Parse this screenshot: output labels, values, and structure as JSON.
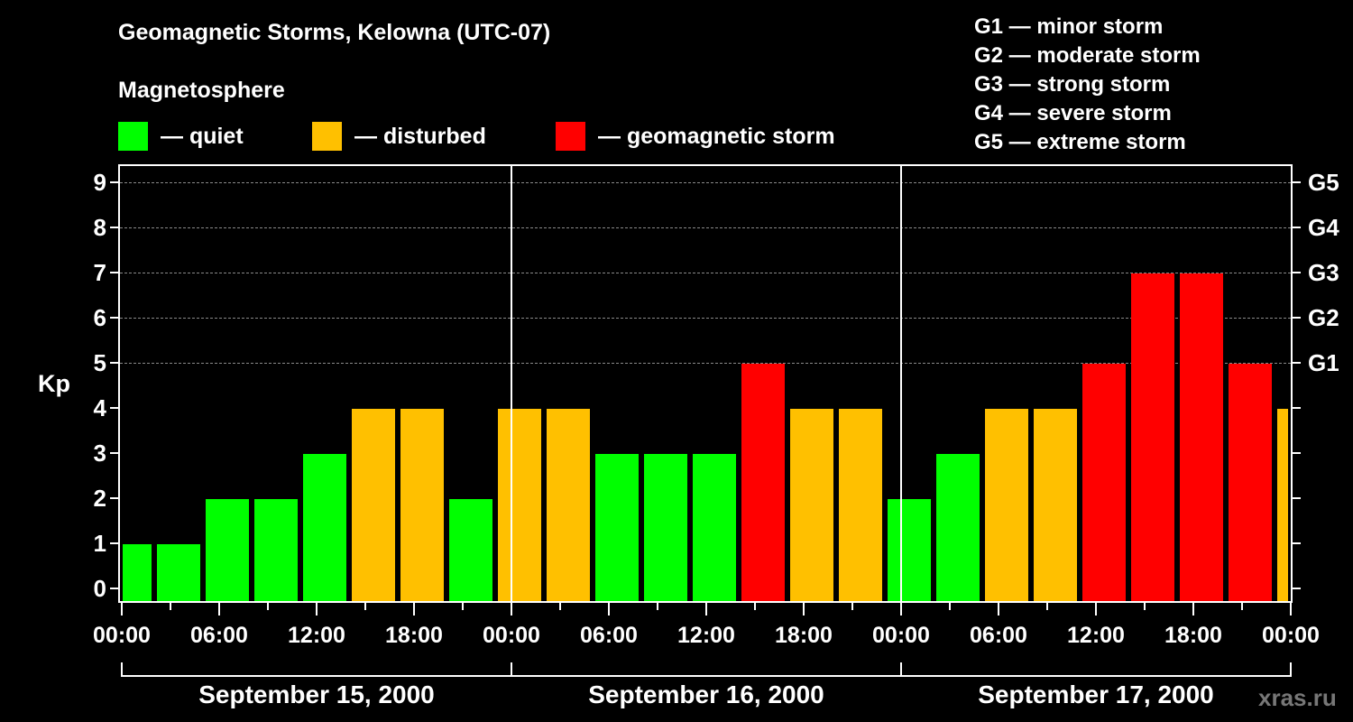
{
  "title": "Geomagnetic Storms, Kelowna (UTC-07)",
  "subtitle": "Magnetosphere",
  "legend": [
    {
      "label": "— quiet",
      "color": "#00ff00"
    },
    {
      "label": "— disturbed",
      "color": "#ffc000"
    },
    {
      "label": "— geomagnetic storm",
      "color": "#ff0000"
    }
  ],
  "g_legend": [
    "G1 — minor storm",
    "G2 — moderate storm",
    "G3 — strong storm",
    "G4 — severe storm",
    "G5 — extreme storm"
  ],
  "y_axis_label": "Kp",
  "y_ticks": [
    "0",
    "1",
    "2",
    "3",
    "4",
    "5",
    "6",
    "7",
    "8",
    "9"
  ],
  "g_ticks": [
    {
      "label": "G1",
      "kp": 5
    },
    {
      "label": "G2",
      "kp": 6
    },
    {
      "label": "G3",
      "kp": 7
    },
    {
      "label": "G4",
      "kp": 8
    },
    {
      "label": "G5",
      "kp": 9
    }
  ],
  "x_ticks": [
    "00:00",
    "06:00",
    "12:00",
    "18:00",
    "00:00",
    "06:00",
    "12:00",
    "18:00",
    "00:00",
    "06:00",
    "12:00",
    "18:00",
    "00:00"
  ],
  "dates": [
    "September 15, 2000",
    "September 16, 2000",
    "September 17, 2000"
  ],
  "watermark": "xras.ru",
  "chart_data": {
    "type": "bar",
    "title": "Geomagnetic Storms, Kelowna (UTC-07)",
    "subtitle": "Magnetosphere",
    "xlabel": "",
    "ylabel": "Kp",
    "ylim": [
      0,
      9
    ],
    "bin_hours": 3,
    "bin_start_offset_hours": -1,
    "categories": [
      "Sep 14 23:00",
      "Sep 15 02:00",
      "Sep 15 05:00",
      "Sep 15 08:00",
      "Sep 15 11:00",
      "Sep 15 14:00",
      "Sep 15 17:00",
      "Sep 15 20:00",
      "Sep 15 23:00",
      "Sep 16 02:00",
      "Sep 16 05:00",
      "Sep 16 08:00",
      "Sep 16 11:00",
      "Sep 16 14:00",
      "Sep 16 17:00",
      "Sep 16 20:00",
      "Sep 16 23:00",
      "Sep 17 02:00",
      "Sep 17 05:00",
      "Sep 17 08:00",
      "Sep 17 11:00",
      "Sep 17 14:00",
      "Sep 17 17:00",
      "Sep 17 20:00",
      "Sep 17 23:00"
    ],
    "values": [
      1,
      1,
      2,
      2,
      3,
      4,
      4,
      2,
      4,
      4,
      3,
      3,
      3,
      5,
      4,
      4,
      2,
      3,
      4,
      4,
      5,
      7,
      7,
      5,
      4
    ],
    "level_colors": {
      "quiet": "#00ff00",
      "disturbed": "#ffc000",
      "storm": "#ff0000"
    },
    "levels": [
      "quiet",
      "quiet",
      "quiet",
      "quiet",
      "quiet",
      "disturbed",
      "disturbed",
      "quiet",
      "disturbed",
      "disturbed",
      "quiet",
      "quiet",
      "quiet",
      "storm",
      "disturbed",
      "disturbed",
      "quiet",
      "quiet",
      "disturbed",
      "disturbed",
      "storm",
      "storm",
      "storm",
      "storm",
      "disturbed"
    ],
    "right_axis": {
      "G1": 5,
      "G2": 6,
      "G3": 7,
      "G4": 8,
      "G5": 9
    },
    "grid": "dashed horizontal lines at Kp 5-9",
    "legend_position": "top"
  }
}
